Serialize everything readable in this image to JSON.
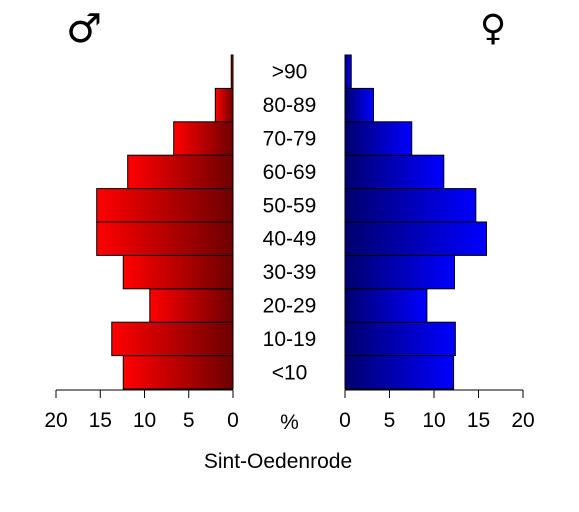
{
  "chart_data": {
    "type": "bar",
    "orientation": "horizontal",
    "layout": "population-pyramid",
    "categories": [
      "<10",
      "10-19",
      "20-29",
      "30-39",
      "40-49",
      "50-59",
      "60-69",
      "70-79",
      "80-89",
      ">90"
    ],
    "series": [
      {
        "symbol": "♂",
        "side": "left",
        "values": [
          12.4,
          13.7,
          9.4,
          12.4,
          15.4,
          15.4,
          11.9,
          6.7,
          2.0,
          0.2
        ],
        "color_light": "#ff0000",
        "color_dark": "#6e0000"
      },
      {
        "symbol": "♀",
        "side": "right",
        "values": [
          12.2,
          12.4,
          9.2,
          12.3,
          15.9,
          14.7,
          11.1,
          7.5,
          3.2,
          0.7
        ],
        "color_light": "#0000ff",
        "color_dark": "#00006e"
      }
    ],
    "xlim": [
      0,
      20
    ],
    "ticks_left": [
      "20",
      "15",
      "10",
      "5",
      "0"
    ],
    "ticks_right": [
      "0",
      "5",
      "10",
      "15",
      "20"
    ],
    "tick_values": [
      0,
      5,
      10,
      15,
      20
    ],
    "xlabel": "%",
    "caption": "Sint-Oedenrode"
  }
}
